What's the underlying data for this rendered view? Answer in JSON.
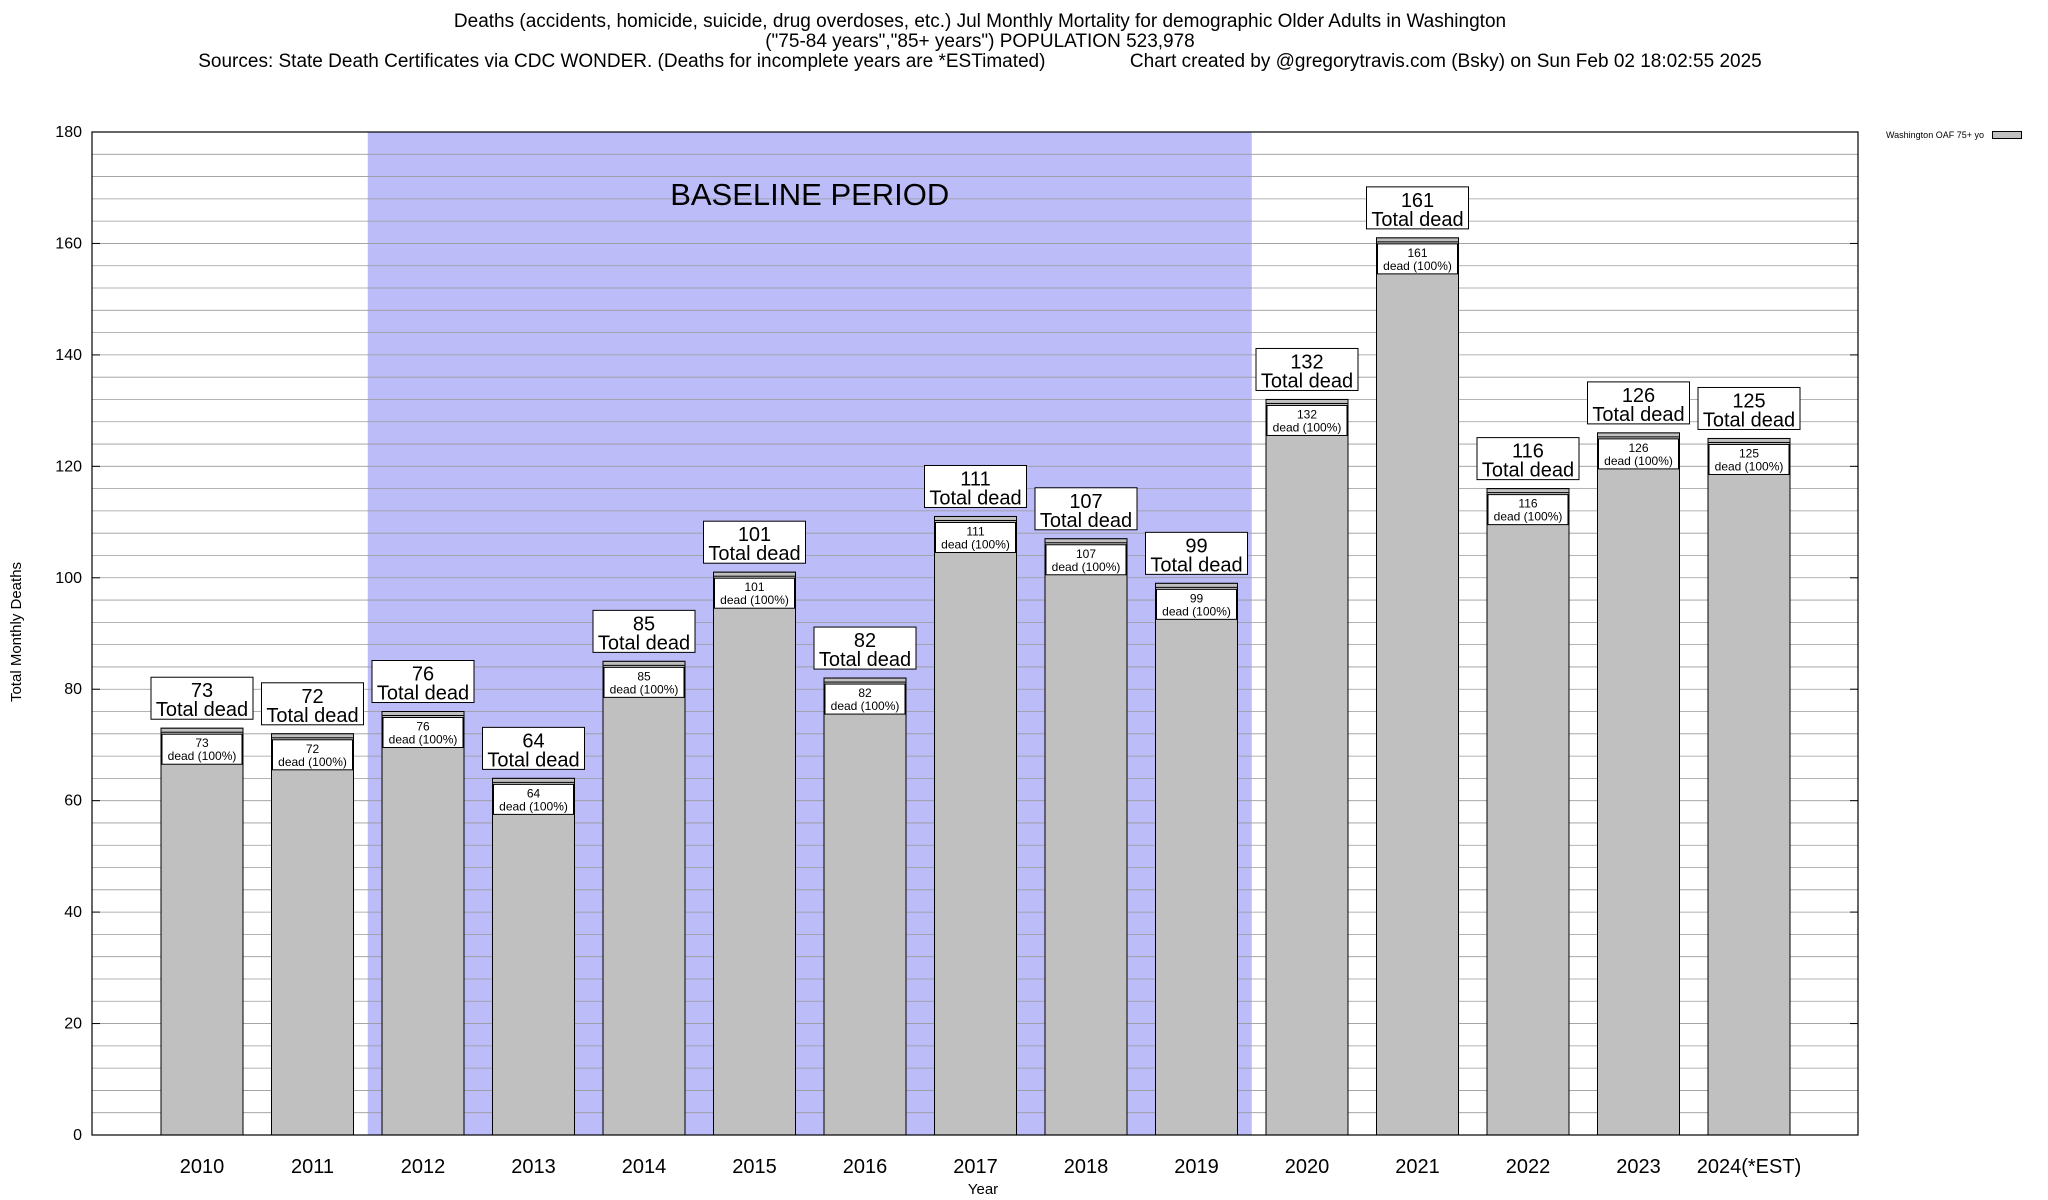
{
  "title": {
    "line1": "Deaths (accidents, homicide, suicide, drug overdoses, etc.) Jul Monthly Mortality for demographic Older Adults in Washington",
    "line2": "(\"75-84 years\",\"85+ years\") POPULATION 523,978",
    "line3": "Sources: State Death Certificates via CDC WONDER. (Deaths for incomplete years are *ESTimated)                Chart created by @gregorytravis.com (Bsky) on Sun Feb 02 18:02:55 2025"
  },
  "legend": {
    "label": "Washington OAF 75+ yo"
  },
  "chart_data": {
    "type": "bar",
    "xlabel": "Year",
    "ylabel": "Total Monthly Deaths",
    "ylim": [
      0,
      180
    ],
    "y_ticks": [
      0,
      20,
      40,
      60,
      80,
      100,
      120,
      140,
      160,
      180
    ],
    "grid": "horizontal minor lines every 4",
    "categories": [
      "2010",
      "2011",
      "2012",
      "2013",
      "2014",
      "2015",
      "2016",
      "2017",
      "2018",
      "2019",
      "2020",
      "2021",
      "2022",
      "2023",
      "2024(*EST)"
    ],
    "series": [
      {
        "name": "Washington OAF 75+ yo",
        "values": [
          73,
          72,
          76,
          64,
          85,
          101,
          82,
          111,
          107,
          99,
          132,
          161,
          116,
          126,
          125
        ]
      }
    ],
    "total_label_suffix": "Total dead",
    "inner_label_suffix": "dead (100%)",
    "baseline_region": {
      "label": "BASELINE PERIOD",
      "from": "2012",
      "to": "2019"
    },
    "colors": {
      "bar": "#c0c0c0",
      "baseline": "#bcbcf8"
    }
  }
}
